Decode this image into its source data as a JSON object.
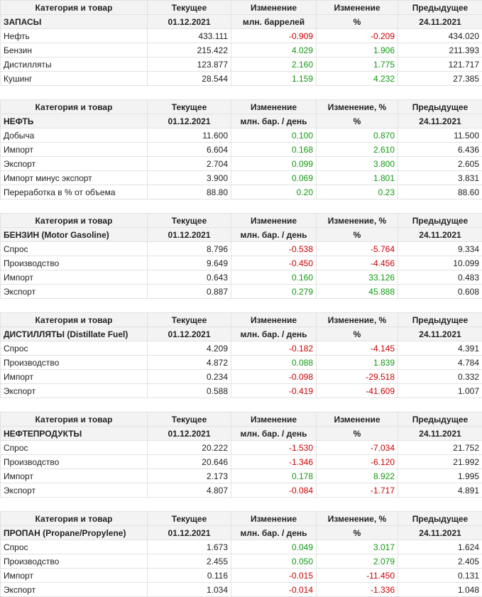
{
  "tables": [
    {
      "header": [
        "Категория и товар",
        "Текущее",
        "Изменение",
        "Изменение",
        "Предыдущее"
      ],
      "subheader": [
        "ЗАПАСЫ",
        "01.12.2021",
        "млн. баррелей",
        "%",
        "24.11.2021"
      ],
      "rows": [
        {
          "name": "Нефть",
          "current": "433.111",
          "change": "-0.909",
          "pct": "-0.209",
          "previous": "434.020"
        },
        {
          "name": "Бензин",
          "current": "215.422",
          "change": "4.029",
          "pct": "1.906",
          "previous": "211.393"
        },
        {
          "name": "Дистилляты",
          "current": "123.877",
          "change": "2.160",
          "pct": "1.775",
          "previous": "121.717"
        },
        {
          "name": "Кушинг",
          "current": "28.544",
          "change": "1.159",
          "pct": "4.232",
          "previous": "27.385"
        }
      ]
    },
    {
      "header": [
        "Категория и товар",
        "Текущее",
        "Изменение",
        "Изменение, %",
        "Предыдущее"
      ],
      "subheader": [
        "НЕФТЬ",
        "01.12.2021",
        "млн. бар. / день",
        "%",
        "24.11.2021"
      ],
      "rows": [
        {
          "name": "Добыча",
          "current": "11.600",
          "change": "0.100",
          "pct": "0.870",
          "previous": "11.500"
        },
        {
          "name": "Импорт",
          "current": "6.604",
          "change": "0.168",
          "pct": "2.610",
          "previous": "6.436"
        },
        {
          "name": "Экспорт",
          "current": "2.704",
          "change": "0.099",
          "pct": "3.800",
          "previous": "2.605"
        },
        {
          "name": "Импорт минус экспорт",
          "current": "3.900",
          "change": "0.069",
          "pct": "1.801",
          "previous": "3.831"
        },
        {
          "name": "Переработка в % от объема",
          "current": "88.80",
          "change": "0.20",
          "pct": "0.23",
          "previous": "88.60"
        }
      ]
    },
    {
      "header": [
        "Категория и товар",
        "Текущее",
        "Изменение",
        "Изменение, %",
        "Предыдущее"
      ],
      "subheader": [
        "БЕНЗИН (Motor Gasoline)",
        "01.12.2021",
        "млн. бар. / день",
        "%",
        "24.11.2021"
      ],
      "rows": [
        {
          "name": "Спрос",
          "current": "8.796",
          "change": "-0.538",
          "pct": "-5.764",
          "previous": "9.334"
        },
        {
          "name": "Производство",
          "current": "9.649",
          "change": "-0.450",
          "pct": "-4.456",
          "previous": "10.099"
        },
        {
          "name": "Импорт",
          "current": "0.643",
          "change": "0.160",
          "pct": "33.126",
          "previous": "0.483"
        },
        {
          "name": "Экспорт",
          "current": "0.887",
          "change": "0.279",
          "pct": "45.888",
          "previous": "0.608"
        }
      ]
    },
    {
      "header": [
        "Категория и товар",
        "Текущее",
        "Изменение",
        "Изменение, %",
        "Предыдущее"
      ],
      "subheader": [
        "ДИСТИЛЛЯТЫ (Distillate Fuel)",
        "01.12.2021",
        "млн. бар. / день",
        "%",
        "24.11.2021"
      ],
      "rows": [
        {
          "name": "Спрос",
          "current": "4.209",
          "change": "-0.182",
          "pct": "-4.145",
          "previous": "4.391"
        },
        {
          "name": "Производство",
          "current": "4.872",
          "change": "0.088",
          "pct": "1.839",
          "previous": "4.784"
        },
        {
          "name": "Импорт",
          "current": "0.234",
          "change": "-0.098",
          "pct": "-29.518",
          "previous": "0.332"
        },
        {
          "name": "Экспорт",
          "current": "0.588",
          "change": "-0.419",
          "pct": "-41.609",
          "previous": "1.007"
        }
      ]
    },
    {
      "header": [
        "Категория и товар",
        "Текущее",
        "Изменение",
        "Изменение",
        "Предыдущее"
      ],
      "subheader": [
        "НЕФТЕПРОДУКТЫ",
        "01.12.2021",
        "млн. бар. / день",
        "%",
        "24.11.2021"
      ],
      "rows": [
        {
          "name": "Спрос",
          "current": "20.222",
          "change": "-1.530",
          "pct": "-7.034",
          "previous": "21.752"
        },
        {
          "name": "Производство",
          "current": "20.646",
          "change": "-1.346",
          "pct": "-6.120",
          "previous": "21.992"
        },
        {
          "name": "Импорт",
          "current": "2.173",
          "change": "0.178",
          "pct": "8.922",
          "previous": "1.995"
        },
        {
          "name": "Экспорт",
          "current": "4.807",
          "change": "-0.084",
          "pct": "-1.717",
          "previous": "4.891"
        }
      ]
    },
    {
      "header": [
        "Категория и товар",
        "Текущее",
        "Изменение",
        "Изменение, %",
        "Предыдущее"
      ],
      "subheader": [
        "ПРОПАН (Propane/Propylene)",
        "01.12.2021",
        "млн. бар. / день",
        "%",
        "24.11.2021"
      ],
      "rows": [
        {
          "name": "Спрос",
          "current": "1.673",
          "change": "0.049",
          "pct": "3.017",
          "previous": "1.624"
        },
        {
          "name": "Производство",
          "current": "2.455",
          "change": "0.050",
          "pct": "2.079",
          "previous": "2.405"
        },
        {
          "name": "Импорт",
          "current": "0.116",
          "change": "-0.015",
          "pct": "-11.450",
          "previous": "0.131"
        },
        {
          "name": "Экспорт",
          "current": "1.034",
          "change": "-0.014",
          "pct": "-1.336",
          "previous": "1.048"
        }
      ]
    }
  ],
  "colors": {
    "negative": "#cc0000",
    "positive": "#119911",
    "header_bg": "#f3f3f3"
  }
}
